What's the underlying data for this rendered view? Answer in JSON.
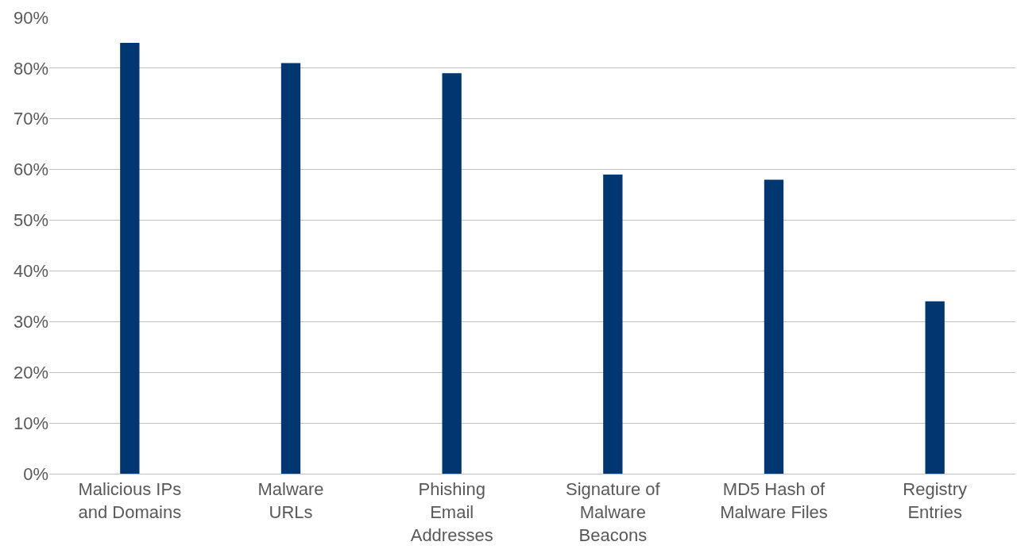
{
  "chart_data": {
    "type": "bar",
    "categories": [
      "Malicious IPs\nand Domains",
      "Malware\nURLs",
      "Phishing\nEmail\nAddresses",
      "Signature of\nMalware\nBeacons",
      "MD5 Hash of\nMalware Files",
      "Registry\nEntries"
    ],
    "values": [
      85,
      81,
      79,
      59,
      58,
      34
    ],
    "color": "#003770",
    "ylim": [
      0,
      90
    ],
    "yticks": [
      {
        "value": 0,
        "label": "0%"
      },
      {
        "value": 10,
        "label": "10%"
      },
      {
        "value": 20,
        "label": "20%"
      },
      {
        "value": 30,
        "label": "30%"
      },
      {
        "value": 40,
        "label": "40%"
      },
      {
        "value": 50,
        "label": "50%"
      },
      {
        "value": 60,
        "label": "60%"
      },
      {
        "value": 70,
        "label": "70%"
      },
      {
        "value": 80,
        "label": "80%"
      },
      {
        "value": 90,
        "label": "90%"
      }
    ],
    "grid": "y"
  }
}
